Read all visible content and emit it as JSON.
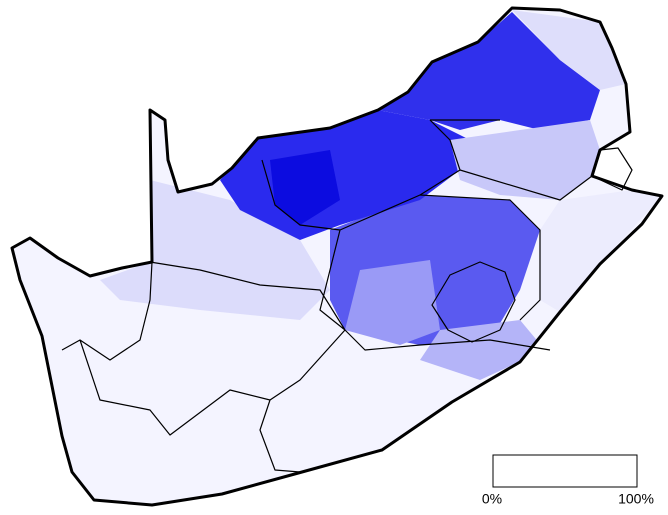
{
  "legend": {
    "min_label": "0%",
    "max_label": "100%"
  }
}
